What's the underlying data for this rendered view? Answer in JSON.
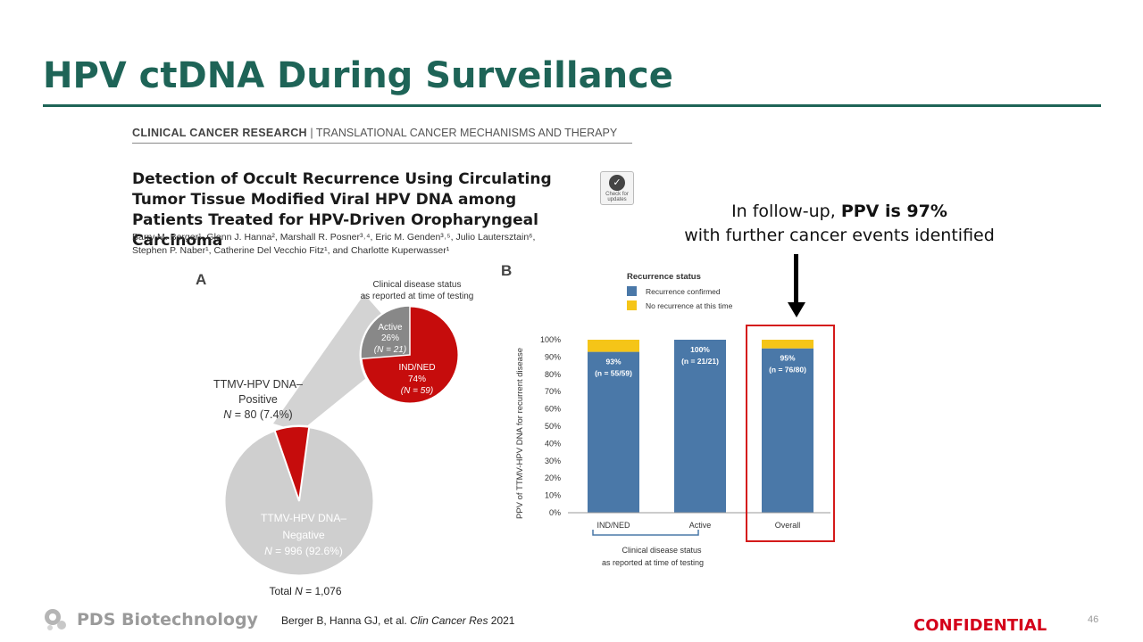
{
  "slide": {
    "title": "HPV ctDNA During Surveillance",
    "page_number": "46",
    "confidential": "CONFIDENTIAL",
    "logo_text": "PDS Biotechnology",
    "citation_prefix": "Berger B, Hanna GJ, et al. ",
    "citation_journal": "Clin Cancer Res",
    "citation_year": " 2021"
  },
  "paper": {
    "journal": "CLINICAL CANCER RESEARCH",
    "journal_separator": " | ",
    "section": "TRANSLATIONAL CANCER MECHANISMS AND THERAPY",
    "title": "Detection of Occult Recurrence Using Circulating Tumor Tissue Modified Viral HPV DNA among Patients Treated for HPV-Driven Oropharyngeal Carcinoma",
    "authors_line1": "Barry M. Berger¹, Glenn J. Hanna², Marshall R. Posner³˒⁴, Eric M. Genden³˒⁵, Julio Lautersztain⁶,",
    "authors_line2": "Stephen P. Naber¹, Catherine Del Vecchio Fitz¹, and Charlotte Kuperwasser¹",
    "check_badge": "Check for updates"
  },
  "callout": {
    "line1_prefix": "In follow-up, ",
    "line1_bold": "PPV is 97%",
    "line2": "with further cancer events identified"
  },
  "panel_a": {
    "label": "A",
    "status_title_1": "Clinical disease status",
    "status_title_2": "as reported at time of testing",
    "positive_1": "TTMV-HPV DNA–",
    "positive_2": "Positive",
    "positive_n_label": "N",
    "positive_n_value": " = 80 (7.4%)",
    "negative_1": "TTMV-HPV DNA–",
    "negative_2": "Negative",
    "negative_n_label": "N",
    "negative_n_value": " = 996 (92.6%)",
    "total_label": "Total ",
    "total_n": "N",
    "total_value": " = 1,076",
    "active_label": "Active",
    "active_pct": "26%",
    "active_n": "(N = 21)",
    "ind_label": "IND/NED",
    "ind_pct": "74%",
    "ind_n": "(N = 59)"
  },
  "chart_data": [
    {
      "type": "pie",
      "title": "TTMV-HPV DNA status (Total N = 1,076)",
      "slices": [
        {
          "label": "TTMV-HPV DNA–Positive",
          "value": 80,
          "percent": 7.4
        },
        {
          "label": "TTMV-HPV DNA–Negative",
          "value": 996,
          "percent": 92.6
        }
      ]
    },
    {
      "type": "pie",
      "title": "Clinical disease status as reported at time of testing",
      "slices": [
        {
          "label": "Active",
          "value": 21,
          "percent": 26
        },
        {
          "label": "IND/NED",
          "value": 59,
          "percent": 74
        }
      ]
    },
    {
      "type": "bar",
      "stacked": true,
      "panel_label": "B",
      "legend_title": "Recurrence status",
      "ylabel": "PPV of TTMV-HPV DNA for recurrent disease",
      "xlabel_1": "Clinical disease status",
      "xlabel_2": "as reported at time of testing",
      "ylim": [
        0,
        100
      ],
      "yticks": [
        "0%",
        "10%",
        "20%",
        "30%",
        "40%",
        "50%",
        "60%",
        "70%",
        "80%",
        "90%",
        "100%"
      ],
      "categories": [
        "IND/NED",
        "Active",
        "Overall"
      ],
      "series": [
        {
          "name": "Recurrence confirmed",
          "color": "#4a78a8",
          "values": [
            93,
            100,
            95
          ]
        },
        {
          "name": "No recurrence at this time",
          "color": "#f5c518",
          "values": [
            7,
            0,
            5
          ]
        }
      ],
      "data_labels": [
        {
          "pct": "93%",
          "n": "(n = 55/59)"
        },
        {
          "pct": "100%",
          "n": "(n = 21/21)"
        },
        {
          "pct": "95%",
          "n": "(n = 76/80)"
        }
      ]
    }
  ]
}
